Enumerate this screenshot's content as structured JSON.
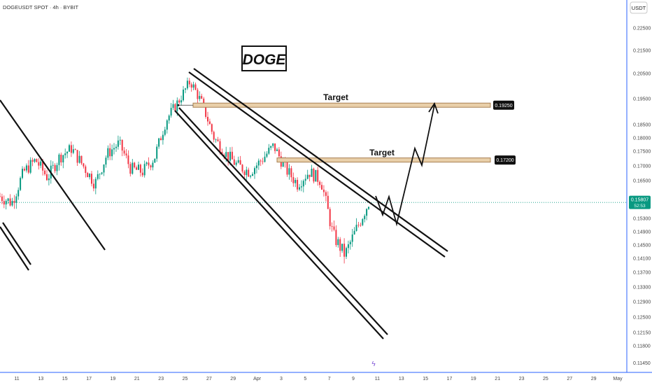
{
  "header": {
    "symbol_label": "DOGEUSDT SPOT · 4h · BYBIT",
    "currency": "USDT"
  },
  "overlay": {
    "title": "DOGE",
    "target_label": "Target"
  },
  "chart_data": {
    "type": "candlestick",
    "y_axis": {
      "ticks": [
        "0.22500",
        "0.21500",
        "0.20500",
        "0.19500",
        "0.18500",
        "0.18000",
        "0.17500",
        "0.17000",
        "0.16500",
        "0.15300",
        "0.14900",
        "0.14500",
        "0.14100",
        "0.13700",
        "0.13300",
        "0.12900",
        "0.12500",
        "0.12150",
        "0.11800",
        "0.11450"
      ],
      "range": [
        0.113,
        0.23
      ]
    },
    "x_axis": {
      "ticks": [
        "11",
        "13",
        "15",
        "17",
        "19",
        "21",
        "23",
        "25",
        "27",
        "29",
        "Apr",
        "3",
        "5",
        "7",
        "9",
        "11",
        "13",
        "15",
        "17",
        "19",
        "21",
        "23",
        "25",
        "27",
        "29",
        "May"
      ]
    },
    "current_price": {
      "value": 0.15807,
      "label": "0.15807",
      "countdown": "52:53",
      "color": "#089981"
    },
    "targets": [
      {
        "label": "Target",
        "price": 0.1925,
        "price_label": "0.19250"
      },
      {
        "label": "Target",
        "price": 0.172,
        "price_label": "0.17200"
      }
    ],
    "colors": {
      "up": "#089981",
      "down": "#f23645",
      "current_line": "#089981",
      "target_box": "#d8b58a",
      "axis": "#2962ff"
    },
    "candles_approx_path": [
      {
        "date": "10",
        "close": 0.16
      },
      {
        "date": "11",
        "close": 0.158
      },
      {
        "date": "12",
        "close": 0.168
      },
      {
        "date": "13",
        "close": 0.172
      },
      {
        "date": "14",
        "close": 0.166
      },
      {
        "date": "15",
        "close": 0.173
      },
      {
        "date": "16",
        "close": 0.176
      },
      {
        "date": "17",
        "close": 0.17
      },
      {
        "date": "18",
        "close": 0.164
      },
      {
        "date": "19",
        "close": 0.174
      },
      {
        "date": "20",
        "close": 0.178
      },
      {
        "date": "21",
        "close": 0.169
      },
      {
        "date": "22",
        "close": 0.168
      },
      {
        "date": "23",
        "close": 0.173
      },
      {
        "date": "24",
        "close": 0.187
      },
      {
        "date": "25",
        "close": 0.194
      },
      {
        "date": "26",
        "close": 0.202
      },
      {
        "date": "27",
        "close": 0.193
      },
      {
        "date": "28",
        "close": 0.18
      },
      {
        "date": "29",
        "close": 0.174
      },
      {
        "date": "30",
        "close": 0.17
      },
      {
        "date": "31",
        "close": 0.168
      },
      {
        "date": "Apr",
        "close": 0.172
      },
      {
        "date": "2",
        "close": 0.177
      },
      {
        "date": "3",
        "close": 0.169
      },
      {
        "date": "4",
        "close": 0.164
      },
      {
        "date": "5",
        "close": 0.168
      },
      {
        "date": "6",
        "close": 0.165
      },
      {
        "date": "7",
        "close": 0.148
      },
      {
        "date": "8",
        "close": 0.142
      },
      {
        "date": "9",
        "close": 0.15
      },
      {
        "date": "10",
        "close": 0.1581
      }
    ]
  }
}
